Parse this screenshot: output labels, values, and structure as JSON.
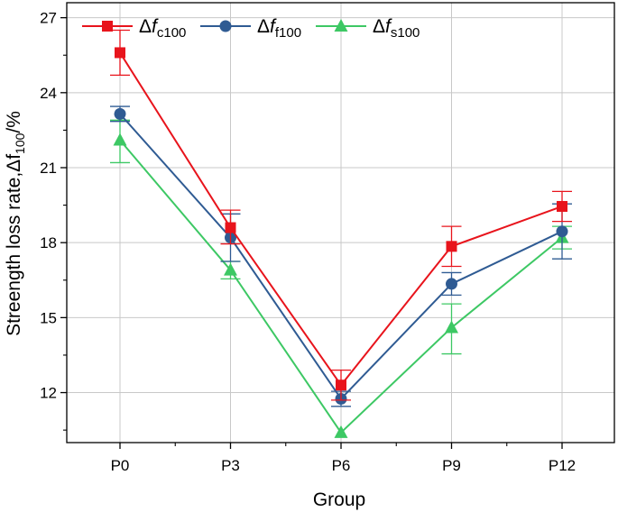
{
  "chart_data": {
    "type": "line",
    "title": "",
    "xlabel": "Group",
    "ylabel": {
      "main": "Streength loss rate,",
      "delta": "Δf",
      "sub": "100",
      "unit": "/%"
    },
    "categories": [
      "P0",
      "P3",
      "P6",
      "P9",
      "P12"
    ],
    "ylim": [
      10,
      27.6
    ],
    "yticks": [
      12,
      15,
      18,
      21,
      24,
      27
    ],
    "ytick_labels": [
      "12",
      "15",
      "18",
      "21",
      "24",
      "27"
    ],
    "grid": true,
    "legend_position": "top-left",
    "series": [
      {
        "name": "Δf_c100",
        "legend": {
          "delta": "Δ",
          "f": "f",
          "sub": "c100"
        },
        "color": "#e8141c",
        "marker": "square",
        "values": [
          25.6,
          18.6,
          12.3,
          17.85,
          19.45
        ],
        "err_low": [
          0.9,
          0.65,
          0.6,
          0.8,
          0.6
        ],
        "err_high": [
          0.9,
          0.7,
          0.6,
          0.8,
          0.6
        ]
      },
      {
        "name": "Δf_f100",
        "legend": {
          "delta": "Δ",
          "f": "f",
          "sub": "f100"
        },
        "color": "#2f5b93",
        "marker": "circle",
        "values": [
          23.15,
          18.2,
          11.75,
          16.35,
          18.45
        ],
        "err_low": [
          0.3,
          0.95,
          0.3,
          0.45,
          1.1
        ],
        "err_high": [
          0.3,
          0.95,
          0.3,
          0.45,
          1.1
        ]
      },
      {
        "name": "Δf_s100",
        "legend": {
          "delta": "Δ",
          "f": "f",
          "sub": "s100"
        },
        "color": "#3dc864",
        "marker": "triangle",
        "values": [
          22.1,
          16.9,
          10.4,
          14.6,
          18.2
        ],
        "err_low": [
          0.9,
          0.35,
          0.0,
          1.05,
          0.45
        ],
        "err_high": [
          0.8,
          0.35,
          0.0,
          0.95,
          0.45
        ]
      }
    ]
  }
}
